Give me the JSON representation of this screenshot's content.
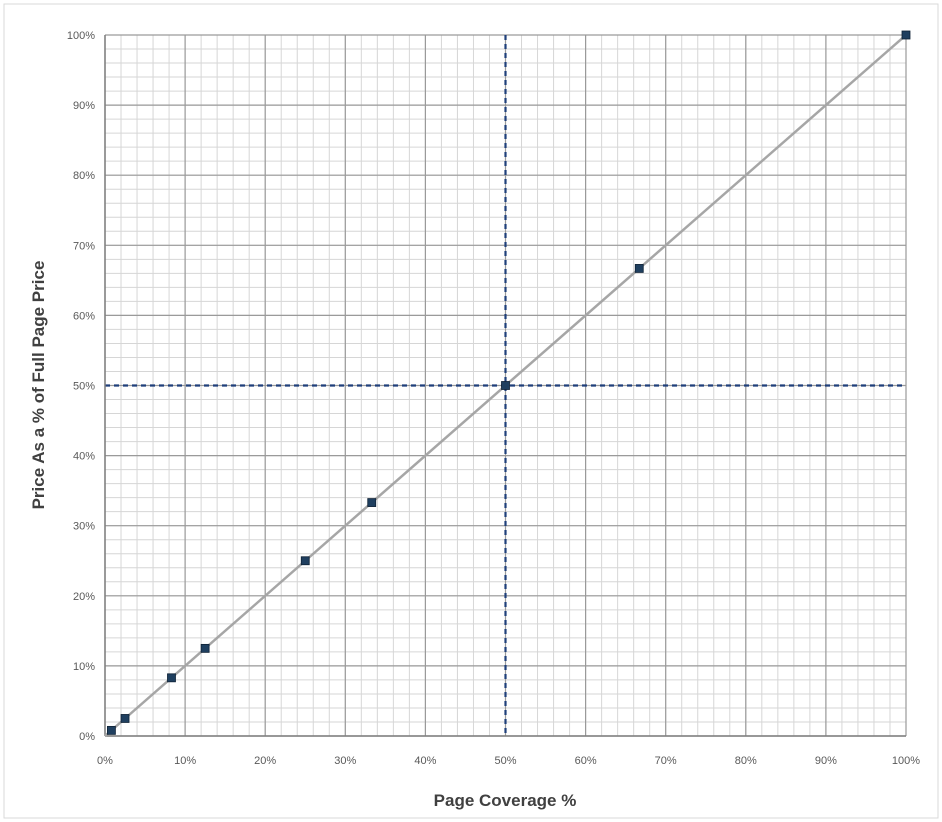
{
  "chart_data": {
    "type": "scatter",
    "title": "",
    "xlabel": "Page Coverage %",
    "ylabel": "Price As a % of Full Page Price",
    "xlim": [
      0,
      100
    ],
    "ylim": [
      0,
      100
    ],
    "x_ticks": [
      "0%",
      "10%",
      "20%",
      "30%",
      "40%",
      "50%",
      "60%",
      "70%",
      "80%",
      "90%",
      "100%"
    ],
    "y_ticks": [
      "0%",
      "10%",
      "20%",
      "30%",
      "40%",
      "50%",
      "60%",
      "70%",
      "80%",
      "90%",
      "100%"
    ],
    "grid": "major and minor",
    "reference_lines": [
      {
        "axis": "x",
        "value": 50,
        "style": "dashed",
        "color": "#1f3f7a"
      },
      {
        "axis": "y",
        "value": 50,
        "style": "dashed",
        "color": "#1f3f7a"
      }
    ],
    "trend_line": {
      "x": [
        0,
        100
      ],
      "y": [
        0,
        100
      ],
      "color": "#a6a6a6"
    },
    "series": [
      {
        "x": [
          0.8,
          2.5,
          8.3,
          12.5,
          25,
          33.3,
          50,
          66.7,
          100
        ],
        "y": [
          0.8,
          2.5,
          8.3,
          12.5,
          25,
          33.3,
          50,
          66.7,
          100
        ],
        "color": "#1f3f5f"
      }
    ]
  }
}
